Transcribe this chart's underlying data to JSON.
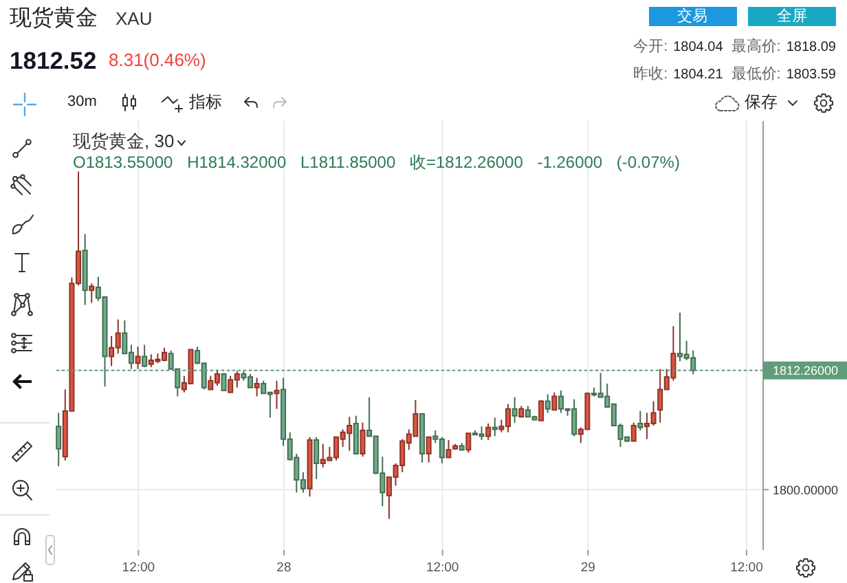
{
  "chart_data": {
    "type": "candlestick",
    "title": "现货黄金",
    "subtitle": "XAU",
    "categories": [
      null,
      null,
      null,
      null,
      null,
      null,
      null,
      null,
      null,
      null,
      null,
      null,
      "12:00",
      null,
      null,
      null,
      null,
      null,
      null,
      null,
      null,
      null,
      null,
      null,
      null,
      null,
      null,
      null,
      null,
      null,
      null,
      null,
      null,
      null,
      "28",
      null,
      null,
      null,
      null,
      null,
      null,
      null,
      null,
      null,
      null,
      null,
      null,
      null,
      null,
      null,
      null,
      null,
      null,
      null,
      null,
      null,
      null,
      null,
      "12:00",
      null,
      null,
      null,
      null,
      null,
      null,
      null,
      null,
      null,
      null,
      null,
      null,
      null,
      null,
      null,
      null,
      null,
      null,
      null,
      null,
      null,
      "29",
      null,
      null,
      null,
      null,
      null,
      null,
      null,
      null,
      null,
      null,
      null,
      null,
      null,
      null,
      null,
      null,
      null,
      null,
      null,
      null,
      null,
      null,
      null,
      "12:00",
      null,
      null
    ],
    "ohlc": [
      [
        1806.5,
        1807.9,
        1802.4,
        1804.2
      ],
      [
        1803.4,
        1810.3,
        1803.0,
        1808.1
      ],
      [
        1808.1,
        1821.8,
        1808.1,
        1821.2
      ],
      [
        1821.2,
        1832.7,
        1821.0,
        1824.5
      ],
      [
        1824.6,
        1826.3,
        1819.0,
        1820.5
      ],
      [
        1820.5,
        1821.2,
        1819.2,
        1820.9
      ],
      [
        1820.8,
        1821.9,
        1819.4,
        1819.7
      ],
      [
        1819.8,
        1819.8,
        1810.6,
        1813.7
      ],
      [
        1813.7,
        1815.8,
        1812.7,
        1814.6
      ],
      [
        1814.6,
        1817.5,
        1814.0,
        1816.1
      ],
      [
        1816.1,
        1817.4,
        1814.0,
        1814.0
      ],
      [
        1814.1,
        1814.9,
        1812.4,
        1813.0
      ],
      [
        1813.0,
        1814.7,
        1812.4,
        1813.7
      ],
      [
        1813.7,
        1814.9,
        1812.6,
        1812.7
      ],
      [
        1812.9,
        1813.9,
        1812.6,
        1813.3
      ],
      [
        1813.2,
        1814.0,
        1813.0,
        1813.4
      ],
      [
        1813.3,
        1814.6,
        1813.2,
        1814.1
      ],
      [
        1814.0,
        1814.3,
        1812.4,
        1812.4
      ],
      [
        1812.4,
        1812.4,
        1809.6,
        1810.5
      ],
      [
        1810.3,
        1811.7,
        1810.0,
        1811.0
      ],
      [
        1810.9,
        1814.4,
        1810.9,
        1814.4
      ],
      [
        1814.3,
        1814.7,
        1812.9,
        1813.0
      ],
      [
        1813.0,
        1813.0,
        1810.3,
        1810.5
      ],
      [
        1810.3,
        1811.7,
        1810.3,
        1811.2
      ],
      [
        1811.0,
        1812.3,
        1810.7,
        1811.9
      ],
      [
        1811.9,
        1812.0,
        1810.2,
        1810.2
      ],
      [
        1810.0,
        1811.7,
        1810.0,
        1811.3
      ],
      [
        1811.3,
        1812.2,
        1810.5,
        1811.9
      ],
      [
        1811.9,
        1812.2,
        1811.2,
        1811.5
      ],
      [
        1811.6,
        1811.9,
        1810.5,
        1810.5
      ],
      [
        1810.5,
        1811.5,
        1809.6,
        1810.9
      ],
      [
        1810.9,
        1811.2,
        1809.9,
        1809.9
      ],
      [
        1810.0,
        1810.0,
        1807.4,
        1809.8
      ],
      [
        1809.9,
        1811.2,
        1808.3,
        1810.2
      ],
      [
        1810.3,
        1811.5,
        1804.5,
        1805.2
      ],
      [
        1805.2,
        1805.9,
        1803.1,
        1803.1
      ],
      [
        1803.3,
        1803.7,
        1799.7,
        1801.0
      ],
      [
        1801.0,
        1801.8,
        1799.7,
        1800.1
      ],
      [
        1800.1,
        1805.4,
        1799.3,
        1805.1
      ],
      [
        1805.1,
        1805.4,
        1801.1,
        1802.7
      ],
      [
        1802.7,
        1804.7,
        1802.3,
        1803.1
      ],
      [
        1803.0,
        1804.4,
        1803.0,
        1803.3
      ],
      [
        1803.3,
        1805.4,
        1803.0,
        1805.4
      ],
      [
        1805.2,
        1806.2,
        1804.4,
        1805.9
      ],
      [
        1805.8,
        1807.5,
        1804.0,
        1806.6
      ],
      [
        1806.8,
        1807.6,
        1803.7,
        1803.7
      ],
      [
        1803.7,
        1806.9,
        1803.4,
        1806.1
      ],
      [
        1806.1,
        1809.5,
        1805.5,
        1805.5
      ],
      [
        1805.5,
        1805.5,
        1801.6,
        1801.7
      ],
      [
        1801.7,
        1803.4,
        1798.3,
        1799.7
      ],
      [
        1799.4,
        1801.3,
        1797.0,
        1801.3
      ],
      [
        1801.3,
        1802.7,
        1800.4,
        1802.5
      ],
      [
        1802.5,
        1805.2,
        1801.8,
        1805.0
      ],
      [
        1804.8,
        1806.2,
        1804.1,
        1805.7
      ],
      [
        1805.5,
        1809.2,
        1805.5,
        1807.8
      ],
      [
        1807.8,
        1807.8,
        1802.8,
        1803.7
      ],
      [
        1803.7,
        1805.4,
        1802.8,
        1805.4
      ],
      [
        1805.5,
        1806.1,
        1804.8,
        1805.2
      ],
      [
        1805.2,
        1805.4,
        1802.7,
        1803.3
      ],
      [
        1803.3,
        1805.1,
        1803.3,
        1804.1
      ],
      [
        1804.2,
        1804.7,
        1804.1,
        1804.5
      ],
      [
        1804.5,
        1804.8,
        1804.0,
        1804.1
      ],
      [
        1804.1,
        1805.8,
        1803.8,
        1805.8
      ],
      [
        1805.8,
        1806.1,
        1805.7,
        1805.7
      ],
      [
        1805.7,
        1806.5,
        1805.1,
        1805.5
      ],
      [
        1805.5,
        1806.8,
        1805.1,
        1806.4
      ],
      [
        1806.4,
        1807.4,
        1805.5,
        1806.2
      ],
      [
        1806.2,
        1807.2,
        1805.9,
        1806.5
      ],
      [
        1806.5,
        1808.8,
        1805.9,
        1808.3
      ],
      [
        1808.3,
        1809.5,
        1806.9,
        1807.6
      ],
      [
        1807.5,
        1808.6,
        1807.4,
        1808.3
      ],
      [
        1808.2,
        1808.6,
        1807.4,
        1807.5
      ],
      [
        1807.5,
        1807.6,
        1807.1,
        1807.2
      ],
      [
        1807.1,
        1809.2,
        1807.1,
        1809.1
      ],
      [
        1809.1,
        1809.8,
        1807.9,
        1808.3
      ],
      [
        1808.2,
        1810.0,
        1808.2,
        1809.6
      ],
      [
        1809.6,
        1810.2,
        1807.9,
        1808.3
      ],
      [
        1808.3,
        1808.3,
        1807.6,
        1808.2
      ],
      [
        1808.3,
        1809.3,
        1805.5,
        1805.7
      ],
      [
        1805.7,
        1806.4,
        1804.8,
        1806.2
      ],
      [
        1806.2,
        1810.0,
        1806.2,
        1809.9
      ],
      [
        1809.9,
        1810.5,
        1809.6,
        1809.8
      ],
      [
        1809.9,
        1812.0,
        1809.5,
        1809.5
      ],
      [
        1809.6,
        1810.9,
        1808.5,
        1808.5
      ],
      [
        1808.8,
        1808.8,
        1806.5,
        1806.6
      ],
      [
        1806.6,
        1806.8,
        1804.4,
        1805.2
      ],
      [
        1805.4,
        1805.5,
        1804.9,
        1805.0
      ],
      [
        1805.0,
        1806.9,
        1805.0,
        1806.6
      ],
      [
        1806.8,
        1808.1,
        1806.1,
        1806.4
      ],
      [
        1806.5,
        1807.9,
        1805.2,
        1806.8
      ],
      [
        1806.8,
        1809.1,
        1806.6,
        1807.9
      ],
      [
        1808.2,
        1812.4,
        1806.9,
        1810.3
      ],
      [
        1810.3,
        1812.4,
        1810.3,
        1811.6
      ],
      [
        1811.5,
        1816.8,
        1811.2,
        1814.0
      ],
      [
        1814.0,
        1818.2,
        1813.2,
        1813.7
      ],
      [
        1813.9,
        1815.3,
        1813.3,
        1813.52
      ],
      [
        1813.55,
        1814.32,
        1811.85,
        1812.26
      ],
      null,
      null,
      null,
      null,
      null,
      null,
      null,
      null,
      null,
      null
    ],
    "colors": [
      "#6fae88",
      "#df5540",
      "#df5540",
      "#df5540",
      "#6fae88",
      "#df5540",
      "#6fae88",
      "#6fae88",
      "#df5540",
      "#df5540",
      "#6fae88",
      "#6fae88",
      "#df5540",
      "#6fae88",
      "#df5540",
      "#df5540",
      "#df5540",
      "#6fae88",
      "#6fae88",
      "#df5540",
      "#df5540",
      "#6fae88",
      "#6fae88",
      "#df5540",
      "#df5540",
      "#6fae88",
      "#df5540",
      "#df5540",
      "#6fae88",
      "#6fae88",
      "#df5540",
      "#6fae88",
      "#6fae88",
      "#df5540",
      "#6fae88",
      "#6fae88",
      "#6fae88",
      "#6fae88",
      "#df5540",
      "#6fae88",
      "#df5540",
      "#df5540",
      "#df5540",
      "#df5540",
      "#df5540",
      "#6fae88",
      "#df5540",
      "#6fae88",
      "#6fae88",
      "#6fae88",
      "#df5540",
      "#df5540",
      "#df5540",
      "#df5540",
      "#df5540",
      "#6fae88",
      "#df5540",
      "#6fae88",
      "#6fae88",
      "#df5540",
      "#df5540",
      "#6fae88",
      "#df5540",
      "#6fae88",
      "#6fae88",
      "#df5540",
      "#6fae88",
      "#df5540",
      "#df5540",
      "#6fae88",
      "#df5540",
      "#6fae88",
      "#6fae88",
      "#df5540",
      "#6fae88",
      "#df5540",
      "#6fae88",
      "#6fae88",
      "#6fae88",
      "#df5540",
      "#df5540",
      "#6fae88",
      "#6fae88",
      "#6fae88",
      "#6fae88",
      "#6fae88",
      "#6fae88",
      "#df5540",
      "#6fae88",
      "#df5540",
      "#df5540",
      "#df5540",
      "#df5540",
      "#df5540",
      "#6fae88",
      "#6fae88",
      "#6fae88",
      null,
      null,
      null,
      null,
      null,
      null,
      null,
      null,
      null,
      null
    ],
    "ylim": [
      1793.8,
      1837.9
    ],
    "yticks": [
      {
        "value": 1800,
        "label": "1800.00000"
      },
      {
        "value": 1812.26,
        "label": "1812.26000"
      }
    ],
    "grid": true,
    "ref_lines": [
      {
        "axis": "y",
        "value": 1812.26,
        "color": "#5f9d78",
        "line_style": "dotted"
      }
    ],
    "annotations": [
      "1812.52",
      "8.31(0.46%)",
      "交易",
      "全屏",
      "今开:",
      "1804.04",
      "最高价:",
      "1818.09",
      "昨收:",
      "1804.21",
      "最低价:",
      "1803.59",
      "30m",
      "指标",
      "保存",
      "现货黄金, 30",
      "O1813.55000 H1814.32000 L1811.85000 收=1812.26000 -1.26000 (-0.07%)"
    ]
  }
}
